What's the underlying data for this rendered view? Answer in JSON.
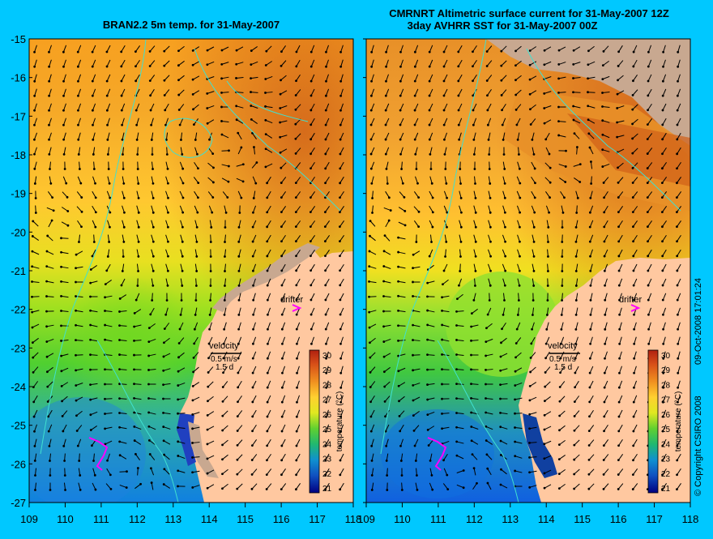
{
  "left_panel": {
    "title": "BRAN2.2 5m temp. for 31-May-2007",
    "velocity_label": "velocity",
    "velocity_scale": "0.5 m/s",
    "velocity_time": "1.5 d",
    "drifter_label": "drifter",
    "colorbar_title": "temperature (°C)"
  },
  "right_panel": {
    "title_line1": "CMRNRT Altimetric surface current for 31-May-2007 12Z",
    "title_line2": "3day AVHRR SST for 31-May-2007 00Z",
    "velocity_label": "velocity",
    "velocity_scale": "0.5 m/s",
    "velocity_time": "1.5 d",
    "drifter_label": "drifter",
    "colorbar_title": "temperature (°C)"
  },
  "x_ticks": [
    "109",
    "110",
    "111",
    "112",
    "113",
    "114",
    "115",
    "116",
    "117",
    "118"
  ],
  "y_ticks": [
    "-15",
    "-16",
    "-17",
    "-18",
    "-19",
    "-20",
    "-21",
    "-22",
    "-23",
    "-24",
    "-25",
    "-26",
    "-27"
  ],
  "colorbar_ticks": [
    "30",
    "29",
    "28",
    "27",
    "26",
    "25",
    "24",
    "23",
    "22",
    "21"
  ],
  "credit": "© Copyright CSIRO 2008",
  "timestamp": "09-Oct-2008 17:01:24",
  "map_extent": {
    "lon": [
      109,
      118
    ],
    "lat": [
      -27,
      -15
    ]
  },
  "colors": {
    "background": "#00c8ff",
    "land": "#ffc8a0",
    "coast_land": "#c8a890",
    "bathymetry_contour": "#40e0d0",
    "drifter_marker": "#ff00ff"
  }
}
